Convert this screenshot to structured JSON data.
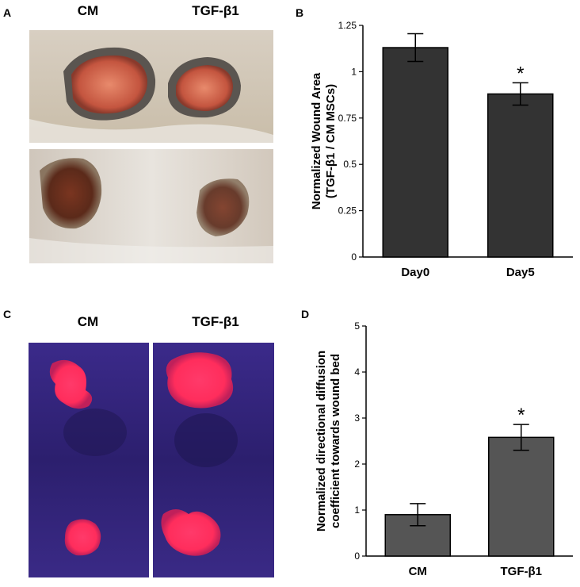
{
  "panels": {
    "a": {
      "letter": "A",
      "labels": [
        "CM",
        "TGF-β1"
      ]
    },
    "b": {
      "letter": "B"
    },
    "c": {
      "letter": "C",
      "labels": [
        "CM",
        "TGF-β1"
      ]
    },
    "d": {
      "letter": "D"
    }
  },
  "chart_data": [
    {
      "type": "bar",
      "panel": "B",
      "categories": [
        "Day0",
        "Day5"
      ],
      "values": [
        1.13,
        0.88
      ],
      "errors": [
        0.075,
        0.06
      ],
      "significance": [
        "",
        "*"
      ],
      "ylabel_lines": [
        "Normalized Wound Area",
        "(TGF-β1 / CM MSCs)"
      ],
      "ylim": [
        0,
        1.25
      ],
      "yticks": [
        0,
        0.25,
        0.5,
        0.75,
        1,
        1.25
      ],
      "ytick_labels": [
        "0",
        "0.25",
        "0.5",
        "0.75",
        "1",
        "1.25"
      ],
      "bar_color": "#333333",
      "grid": false
    },
    {
      "type": "bar",
      "panel": "D",
      "categories": [
        "CM",
        "TGF-β1"
      ],
      "values": [
        0.9,
        2.58
      ],
      "errors": [
        0.24,
        0.28
      ],
      "significance": [
        "",
        "*"
      ],
      "ylabel_lines": [
        "Normalized directional diffusion",
        "coefficient towards wound bed"
      ],
      "ylim": [
        0,
        5
      ],
      "yticks": [
        0,
        1,
        2,
        3,
        4,
        5
      ],
      "ytick_labels": [
        "0",
        "1",
        "2",
        "3",
        "4",
        "5"
      ],
      "bar_color": "#555555",
      "grid": false
    }
  ]
}
